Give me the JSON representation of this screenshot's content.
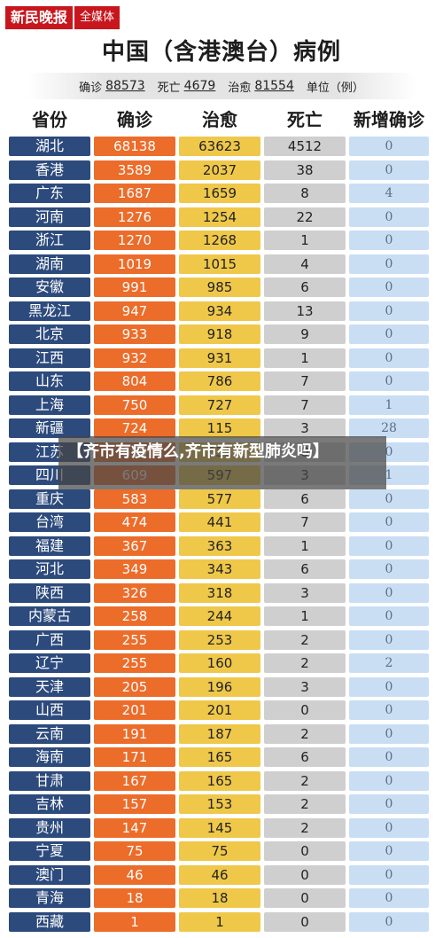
{
  "brand": {
    "logo": "新民晚报",
    "media": "全媒体"
  },
  "title": "中国（含港澳台）病例",
  "summary": {
    "confirmed_label": "确诊",
    "confirmed_value": "88573",
    "deaths_label": "死亡",
    "deaths_value": "4679",
    "cured_label": "治愈",
    "cured_value": "81554",
    "unit_label": "单位（例）"
  },
  "headers": [
    "省份",
    "确诊",
    "治愈",
    "死亡",
    "新增确诊"
  ],
  "rows": [
    [
      "湖北",
      "68138",
      "63623",
      "4512",
      "0"
    ],
    [
      "香港",
      "3589",
      "2037",
      "38",
      "0"
    ],
    [
      "广东",
      "1687",
      "1659",
      "8",
      "4"
    ],
    [
      "河南",
      "1276",
      "1254",
      "22",
      "0"
    ],
    [
      "浙江",
      "1270",
      "1268",
      "1",
      "0"
    ],
    [
      "湖南",
      "1019",
      "1015",
      "4",
      "0"
    ],
    [
      "安徽",
      "991",
      "985",
      "6",
      "0"
    ],
    [
      "黑龙江",
      "947",
      "934",
      "13",
      "0"
    ],
    [
      "北京",
      "933",
      "918",
      "9",
      "0"
    ],
    [
      "江西",
      "932",
      "931",
      "1",
      "0"
    ],
    [
      "山东",
      "804",
      "786",
      "7",
      "0"
    ],
    [
      "上海",
      "750",
      "727",
      "7",
      "1"
    ],
    [
      "新疆",
      "724",
      "115",
      "3",
      "28"
    ],
    [
      "江苏",
      "650",
      "631",
      "0",
      "0"
    ],
    [
      "四川",
      "609",
      "597",
      "3",
      "1"
    ],
    [
      "重庆",
      "583",
      "577",
      "6",
      "0"
    ],
    [
      "台湾",
      "474",
      "441",
      "7",
      "0"
    ],
    [
      "福建",
      "367",
      "363",
      "1",
      "0"
    ],
    [
      "河北",
      "349",
      "343",
      "6",
      "0"
    ],
    [
      "陕西",
      "326",
      "318",
      "3",
      "0"
    ],
    [
      "内蒙古",
      "258",
      "244",
      "1",
      "0"
    ],
    [
      "广西",
      "255",
      "253",
      "2",
      "0"
    ],
    [
      "辽宁",
      "255",
      "160",
      "2",
      "2"
    ],
    [
      "天津",
      "205",
      "196",
      "3",
      "0"
    ],
    [
      "山西",
      "201",
      "201",
      "0",
      "0"
    ],
    [
      "云南",
      "191",
      "187",
      "2",
      "0"
    ],
    [
      "海南",
      "171",
      "165",
      "6",
      "0"
    ],
    [
      "甘肃",
      "167",
      "165",
      "2",
      "0"
    ],
    [
      "吉林",
      "157",
      "153",
      "2",
      "0"
    ],
    [
      "贵州",
      "147",
      "145",
      "2",
      "0"
    ],
    [
      "宁夏",
      "75",
      "75",
      "0",
      "0"
    ],
    [
      "澳门",
      "46",
      "46",
      "0",
      "0"
    ],
    [
      "青海",
      "18",
      "18",
      "0",
      "0"
    ],
    [
      "西藏",
      "1",
      "1",
      "0",
      "0"
    ]
  ],
  "overlay": {
    "text": "【齐市有疫情么,齐市有新型肺炎吗】"
  },
  "colors": {
    "province": "#2c4a7c",
    "confirmed": "#ec6c2a",
    "cured": "#efc84a",
    "deaths": "#cfcfcf",
    "new": "#c9def3",
    "brand": "#c8161d"
  }
}
